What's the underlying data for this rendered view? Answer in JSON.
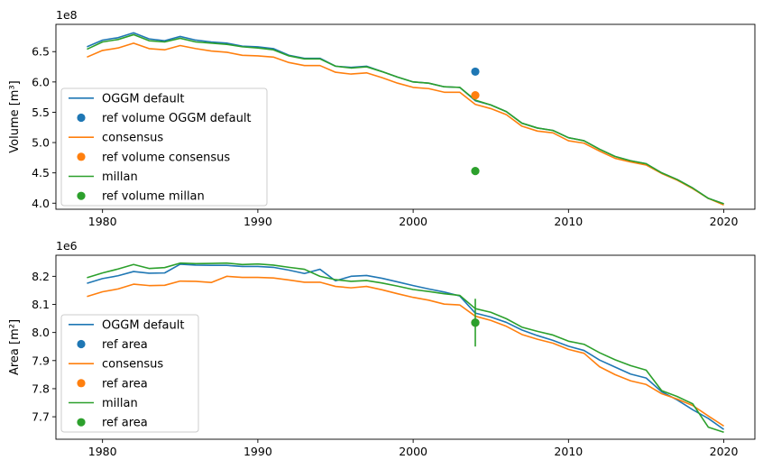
{
  "colors": {
    "blue": "#1f77b4",
    "orange": "#ff7f0e",
    "green": "#2ca02c"
  },
  "chart_data": [
    {
      "type": "line",
      "ylabel": "Volume [m³]",
      "offset_label": "1e8",
      "xlim": [
        1977,
        2022
      ],
      "ylim": [
        3.9,
        6.95
      ],
      "xticks": [
        1980,
        1990,
        2000,
        2010,
        2020
      ],
      "yticks": [
        4.0,
        4.5,
        5.0,
        5.5,
        6.0,
        6.5
      ],
      "ytick_labels": [
        "4.0",
        "4.5",
        "5.0",
        "5.5",
        "6.0",
        "6.5"
      ],
      "x": [
        1979,
        1980,
        1981,
        1982,
        1983,
        1984,
        1985,
        1986,
        1987,
        1988,
        1989,
        1990,
        1991,
        1992,
        1993,
        1994,
        1995,
        1996,
        1997,
        1998,
        1999,
        2000,
        2001,
        2002,
        2003,
        2004,
        2005,
        2006,
        2007,
        2008,
        2009,
        2010,
        2011,
        2012,
        2013,
        2014,
        2015,
        2016,
        2017,
        2018,
        2019,
        2020
      ],
      "series": [
        {
          "name": "OGGM default",
          "color": "blue",
          "kind": "line",
          "values": [
            6.58,
            6.69,
            6.73,
            6.81,
            6.71,
            6.68,
            6.75,
            6.69,
            6.66,
            6.64,
            6.59,
            6.58,
            6.55,
            6.44,
            6.39,
            6.39,
            6.26,
            6.24,
            6.26,
            6.17,
            6.08,
            6.0,
            5.98,
            5.92,
            5.91,
            5.69,
            5.62,
            5.51,
            5.32,
            5.24,
            5.2,
            5.08,
            5.03,
            4.89,
            4.77,
            4.7,
            4.65,
            4.5,
            4.39,
            4.25,
            4.08,
            3.99
          ]
        },
        {
          "name": "ref volume OGGM default",
          "color": "blue",
          "kind": "point",
          "x": 2004,
          "y": 6.17
        },
        {
          "name": "consensus",
          "color": "orange",
          "kind": "line",
          "values": [
            6.41,
            6.52,
            6.56,
            6.64,
            6.55,
            6.53,
            6.6,
            6.55,
            6.51,
            6.49,
            6.44,
            6.43,
            6.41,
            6.32,
            6.27,
            6.27,
            6.16,
            6.13,
            6.15,
            6.07,
            5.98,
            5.91,
            5.89,
            5.83,
            5.83,
            5.63,
            5.56,
            5.46,
            5.27,
            5.19,
            5.16,
            5.03,
            4.99,
            4.86,
            4.74,
            4.68,
            4.63,
            4.49,
            4.38,
            4.24,
            4.08,
            3.97
          ]
        },
        {
          "name": "ref volume consensus",
          "color": "orange",
          "kind": "point",
          "x": 2004,
          "y": 5.78
        },
        {
          "name": "millan",
          "color": "green",
          "kind": "line",
          "values": [
            6.54,
            6.66,
            6.7,
            6.78,
            6.68,
            6.66,
            6.72,
            6.66,
            6.64,
            6.62,
            6.58,
            6.56,
            6.53,
            6.43,
            6.38,
            6.38,
            6.26,
            6.23,
            6.25,
            6.17,
            6.08,
            6.0,
            5.98,
            5.92,
            5.91,
            5.7,
            5.62,
            5.51,
            5.32,
            5.24,
            5.2,
            5.08,
            5.03,
            4.89,
            4.77,
            4.7,
            4.65,
            4.5,
            4.39,
            4.25,
            4.08,
            3.99
          ]
        },
        {
          "name": "ref volume millan",
          "color": "green",
          "kind": "point",
          "x": 2004,
          "y": 4.53
        }
      ]
    },
    {
      "type": "line",
      "ylabel": "Area [m²]",
      "offset_label": "1e6",
      "xlim": [
        1977,
        2022
      ],
      "ylim": [
        7.62,
        8.275
      ],
      "xticks": [
        1980,
        1990,
        2000,
        2010,
        2020
      ],
      "yticks": [
        7.7,
        7.8,
        7.9,
        8.0,
        8.1,
        8.2
      ],
      "ytick_labels": [
        "7.7",
        "7.8",
        "7.9",
        "8.0",
        "8.1",
        "8.2"
      ],
      "x": [
        1979,
        1980,
        1981,
        1982,
        1983,
        1984,
        1985,
        1986,
        1987,
        1988,
        1989,
        1990,
        1991,
        1992,
        1993,
        1994,
        1995,
        1996,
        1997,
        1998,
        1999,
        2000,
        2001,
        2002,
        2003,
        2004,
        2005,
        2006,
        2007,
        2008,
        2009,
        2010,
        2011,
        2012,
        2013,
        2014,
        2015,
        2016,
        2017,
        2018,
        2019,
        2020
      ],
      "series": [
        {
          "name": "OGGM default",
          "color": "blue",
          "kind": "line",
          "values": [
            8.175,
            8.192,
            8.202,
            8.217,
            8.211,
            8.212,
            8.243,
            8.24,
            8.239,
            8.239,
            8.235,
            8.235,
            8.232,
            8.222,
            8.21,
            8.225,
            8.184,
            8.2,
            8.203,
            8.193,
            8.18,
            8.167,
            8.155,
            8.144,
            8.13,
            8.069,
            8.055,
            8.036,
            8.009,
            7.989,
            7.972,
            7.951,
            7.936,
            7.902,
            7.877,
            7.852,
            7.838,
            7.789,
            7.76,
            7.725,
            7.694,
            7.655
          ]
        },
        {
          "name": "ref area",
          "color": "blue",
          "kind": "point",
          "x": 2004,
          "y": 8.035
        },
        {
          "name": "consensus",
          "color": "orange",
          "kind": "line",
          "values": [
            8.128,
            8.145,
            8.155,
            8.172,
            8.167,
            8.168,
            8.183,
            8.182,
            8.178,
            8.2,
            8.196,
            8.196,
            8.194,
            8.187,
            8.179,
            8.179,
            8.164,
            8.159,
            8.164,
            8.152,
            8.138,
            8.125,
            8.115,
            8.101,
            8.098,
            8.058,
            8.043,
            8.022,
            7.993,
            7.976,
            7.962,
            7.94,
            7.926,
            7.878,
            7.85,
            7.828,
            7.815,
            7.782,
            7.763,
            7.74,
            7.703,
            7.667
          ]
        },
        {
          "name": "ref area",
          "color": "orange",
          "kind": "point",
          "x": 2004,
          "y": 8.035
        },
        {
          "name": "millan",
          "color": "green",
          "kind": "line",
          "values": [
            8.195,
            8.212,
            8.226,
            8.242,
            8.228,
            8.231,
            8.247,
            8.245,
            8.246,
            8.247,
            8.242,
            8.244,
            8.24,
            8.232,
            8.225,
            8.2,
            8.188,
            8.182,
            8.185,
            8.176,
            8.165,
            8.153,
            8.146,
            8.138,
            8.132,
            8.085,
            8.072,
            8.049,
            8.019,
            8.004,
            7.991,
            7.969,
            7.958,
            7.928,
            7.903,
            7.882,
            7.866,
            7.793,
            7.772,
            7.746,
            7.663,
            7.645
          ]
        },
        {
          "name": "ref area",
          "color": "green",
          "kind": "point",
          "x": 2004,
          "y": 8.035,
          "error": 0.085
        }
      ]
    }
  ]
}
